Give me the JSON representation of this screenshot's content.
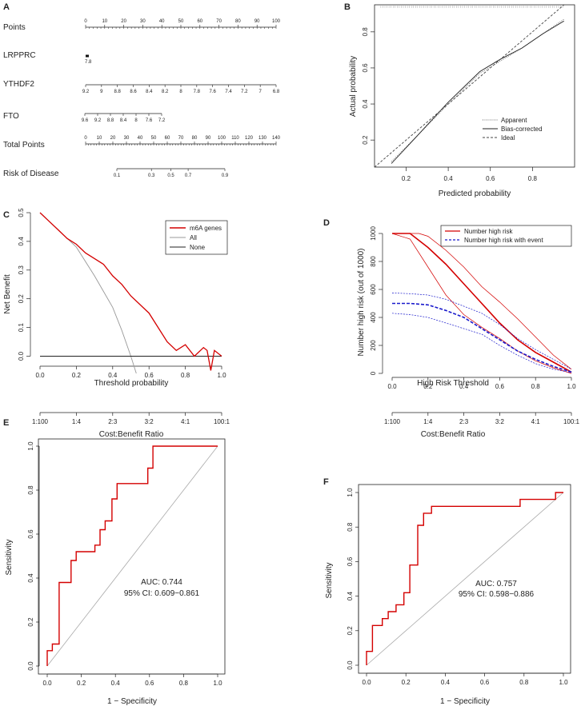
{
  "chart_data": [
    {
      "panel": "A",
      "type": "nomogram",
      "rows": [
        {
          "label": "Points",
          "ticks": [
            "0",
            "10",
            "20",
            "30",
            "40",
            "50",
            "60",
            "70",
            "80",
            "90",
            "100"
          ]
        },
        {
          "label": "LRPPRC",
          "ticks": [
            "7.8"
          ]
        },
        {
          "label": "YTHDF2",
          "ticks": [
            "9.2",
            "9",
            "8.8",
            "8.6",
            "8.4",
            "8.2",
            "8",
            "7.8",
            "7.6",
            "7.4",
            "7.2",
            "7",
            "6.8"
          ]
        },
        {
          "label": "FTO",
          "ticks": [
            "9.6",
            "9.2",
            "8.8",
            "8.4",
            "8",
            "7.6",
            "7.2"
          ]
        },
        {
          "label": "Total Points",
          "ticks": [
            "0",
            "10",
            "20",
            "30",
            "40",
            "50",
            "60",
            "70",
            "80",
            "90",
            "100",
            "110",
            "120",
            "130",
            "140"
          ]
        },
        {
          "label": "Risk of Disease",
          "ticks": [
            "0.1",
            "0.3",
            "0.5",
            "0.7",
            "0.9"
          ]
        }
      ]
    },
    {
      "panel": "B",
      "type": "line",
      "xlabel": "Predicted probability",
      "ylabel": "Actual probability",
      "xlim": [
        0.05,
        1.0
      ],
      "ylim": [
        0.05,
        0.95
      ],
      "xticks": [
        "0.2",
        "0.4",
        "0.6",
        "0.8"
      ],
      "yticks": [
        "0.2",
        "0.4",
        "0.6",
        "0.8"
      ],
      "legend": [
        "Apparent",
        "Bias-corrected",
        "Ideal"
      ],
      "series": [
        {
          "name": "Apparent",
          "x": [
            0.13,
            0.25,
            0.4,
            0.55,
            0.65,
            0.75,
            0.85,
            0.95
          ],
          "y": [
            0.08,
            0.22,
            0.4,
            0.57,
            0.64,
            0.71,
            0.79,
            0.87
          ]
        },
        {
          "name": "Bias-corrected",
          "x": [
            0.13,
            0.25,
            0.4,
            0.55,
            0.65,
            0.75,
            0.85,
            0.95
          ],
          "y": [
            0.07,
            0.22,
            0.41,
            0.58,
            0.65,
            0.71,
            0.79,
            0.86
          ]
        },
        {
          "name": "Ideal",
          "x": [
            0.05,
            0.95
          ],
          "y": [
            0.05,
            0.95
          ]
        }
      ]
    },
    {
      "panel": "C",
      "type": "line",
      "xlabel": "Threshold probability",
      "xlabel2": "Cost:Benefit Ratio",
      "ylabel": "Net Benefit",
      "xlim": [
        0,
        1
      ],
      "ylim": [
        -0.06,
        0.5
      ],
      "xticks": [
        "0.0",
        "0.2",
        "0.4",
        "0.6",
        "0.8",
        "1.0"
      ],
      "yticks": [
        "0.0",
        "0.1",
        "0.2",
        "0.3",
        "0.4",
        "0.5"
      ],
      "ratio_ticks": [
        "1:100",
        "1:4",
        "2:3",
        "3:2",
        "4:1",
        "100:1"
      ],
      "legend": [
        "m6A genes",
        "All",
        "None"
      ],
      "series": [
        {
          "name": "m6A genes",
          "x": [
            0,
            0.05,
            0.1,
            0.15,
            0.2,
            0.25,
            0.3,
            0.35,
            0.4,
            0.45,
            0.5,
            0.55,
            0.6,
            0.65,
            0.7,
            0.75,
            0.8,
            0.85,
            0.9,
            0.92,
            0.94,
            0.96,
            1.0
          ],
          "y": [
            0.5,
            0.47,
            0.44,
            0.41,
            0.39,
            0.36,
            0.34,
            0.32,
            0.28,
            0.25,
            0.21,
            0.18,
            0.15,
            0.1,
            0.05,
            0.02,
            0.04,
            0.0,
            0.03,
            0.02,
            -0.05,
            0.02,
            0.0
          ]
        },
        {
          "name": "All",
          "x": [
            0,
            0.1,
            0.2,
            0.3,
            0.4,
            0.45,
            0.5,
            0.53
          ],
          "y": [
            0.5,
            0.44,
            0.38,
            0.28,
            0.17,
            0.09,
            0.0,
            -0.06
          ]
        },
        {
          "name": "None",
          "x": [
            0,
            1
          ],
          "y": [
            0,
            0
          ]
        }
      ]
    },
    {
      "panel": "D",
      "type": "line",
      "xlabel": "High Risk Threshold",
      "xlabel2": "Cost:Benefit Ratio",
      "ylabel": "Number high risk (out of 1000)",
      "xlim": [
        0,
        1
      ],
      "ylim": [
        0,
        1000
      ],
      "xticks": [
        "0.0",
        "0.2",
        "0.4",
        "0.6",
        "0.8",
        "1.0"
      ],
      "yticks": [
        "0",
        "200",
        "400",
        "600",
        "800",
        "1000"
      ],
      "ratio_ticks": [
        "1:100",
        "1:4",
        "2:3",
        "3:2",
        "4:1",
        "100:1"
      ],
      "legend": [
        "Number high risk",
        "Number high risk with event"
      ],
      "series": [
        {
          "name": "Number high risk",
          "x": [
            0,
            0.1,
            0.2,
            0.3,
            0.4,
            0.5,
            0.6,
            0.7,
            0.8,
            0.9,
            1.0
          ],
          "y": [
            1000,
            1000,
            900,
            780,
            640,
            500,
            360,
            240,
            150,
            80,
            10
          ]
        },
        {
          "name": "Number high risk (upper)",
          "x": [
            0,
            0.15,
            0.2,
            0.3,
            0.4,
            0.5,
            0.6,
            0.7,
            0.8,
            0.9,
            1.0
          ],
          "y": [
            1000,
            1000,
            980,
            880,
            760,
            620,
            510,
            390,
            260,
            130,
            30
          ]
        },
        {
          "name": "Number high risk (lower)",
          "x": [
            0,
            0.1,
            0.2,
            0.3,
            0.4,
            0.5,
            0.6,
            0.7,
            0.8,
            0.9,
            1.0
          ],
          "y": [
            1000,
            960,
            760,
            560,
            420,
            330,
            250,
            160,
            90,
            40,
            0
          ]
        },
        {
          "name": "Number high risk with event",
          "x": [
            0,
            0.1,
            0.2,
            0.3,
            0.4,
            0.5,
            0.6,
            0.7,
            0.8,
            0.9,
            1.0
          ],
          "y": [
            500,
            500,
            490,
            450,
            400,
            320,
            240,
            160,
            100,
            50,
            10
          ]
        },
        {
          "name": "Number high risk with event (upper)",
          "x": [
            0,
            0.1,
            0.2,
            0.3,
            0.4,
            0.5,
            0.6,
            0.7,
            0.8,
            0.9,
            1.0
          ],
          "y": [
            575,
            570,
            560,
            530,
            480,
            430,
            350,
            250,
            170,
            100,
            30
          ]
        },
        {
          "name": "Number high risk with event (lower)",
          "x": [
            0,
            0.1,
            0.2,
            0.3,
            0.4,
            0.5,
            0.6,
            0.7,
            0.8,
            0.9,
            1.0
          ],
          "y": [
            430,
            420,
            400,
            360,
            320,
            280,
            200,
            130,
            70,
            30,
            5
          ]
        }
      ]
    },
    {
      "panel": "E",
      "type": "line",
      "xlabel": "1 − Specificity",
      "ylabel": "Sensitivity",
      "xlim": [
        0,
        1
      ],
      "ylim": [
        0,
        1
      ],
      "xticks": [
        "0.0",
        "0.2",
        "0.4",
        "0.6",
        "0.8",
        "1.0"
      ],
      "yticks": [
        "0.0",
        "0.2",
        "0.4",
        "0.6",
        "0.8",
        "1.0"
      ],
      "annotations": [
        "AUC: 0.744",
        "95% CI: 0.609−0.861"
      ],
      "series": [
        {
          "name": "ROC",
          "x": [
            0,
            0,
            0.03,
            0.03,
            0.07,
            0.07,
            0.14,
            0.14,
            0.17,
            0.17,
            0.28,
            0.28,
            0.31,
            0.31,
            0.34,
            0.34,
            0.38,
            0.38,
            0.41,
            0.41,
            0.59,
            0.59,
            0.62,
            0.62,
            0.72,
            1.0
          ],
          "y": [
            0,
            0.07,
            0.07,
            0.1,
            0.1,
            0.38,
            0.38,
            0.48,
            0.48,
            0.52,
            0.52,
            0.55,
            0.55,
            0.62,
            0.62,
            0.66,
            0.66,
            0.76,
            0.76,
            0.83,
            0.83,
            0.9,
            0.9,
            1.0,
            1.0,
            1.0
          ]
        },
        {
          "name": "Reference",
          "x": [
            0,
            1
          ],
          "y": [
            0,
            1
          ]
        }
      ]
    },
    {
      "panel": "F",
      "type": "line",
      "xlabel": "1 − Specificity",
      "ylabel": "Sensitivity",
      "xlim": [
        0,
        1
      ],
      "ylim": [
        0,
        1
      ],
      "xticks": [
        "0.0",
        "0.2",
        "0.4",
        "0.6",
        "0.8",
        "1.0"
      ],
      "yticks": [
        "0.0",
        "0.2",
        "0.4",
        "0.6",
        "0.8",
        "1.0"
      ],
      "annotations": [
        "AUC: 0.757",
        "95% CI: 0.598−0.886"
      ],
      "series": [
        {
          "name": "ROC",
          "x": [
            0,
            0,
            0.03,
            0.03,
            0.08,
            0.08,
            0.11,
            0.11,
            0.15,
            0.15,
            0.19,
            0.19,
            0.22,
            0.22,
            0.26,
            0.26,
            0.29,
            0.29,
            0.33,
            0.33,
            0.41,
            0.41,
            0.78,
            0.78,
            0.96,
            0.96,
            1.0
          ],
          "y": [
            0,
            0.08,
            0.08,
            0.23,
            0.23,
            0.27,
            0.27,
            0.31,
            0.31,
            0.35,
            0.35,
            0.42,
            0.42,
            0.58,
            0.58,
            0.81,
            0.81,
            0.88,
            0.88,
            0.92,
            0.92,
            0.92,
            0.92,
            0.96,
            0.96,
            1.0,
            1.0
          ]
        },
        {
          "name": "Reference",
          "x": [
            0,
            1
          ],
          "y": [
            0,
            1
          ]
        }
      ]
    }
  ],
  "panel_labels": [
    "A",
    "B",
    "C",
    "D",
    "E",
    "F"
  ],
  "colors": {
    "red": "#d40000",
    "blue": "#1a1acc",
    "gray": "#999999",
    "black": "#222222"
  }
}
